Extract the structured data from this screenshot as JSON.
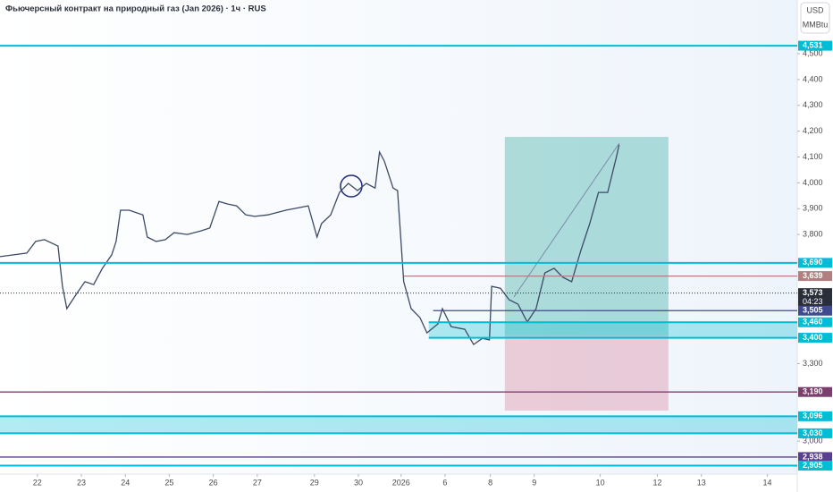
{
  "chart_data": {
    "type": "line",
    "title": "Фьючерсный контракт на природный газ (Jan 2026) · 1ч · RUS",
    "currency": "USD",
    "unit": "MMBtu",
    "xlim": [
      -0.85,
      17.28
    ],
    "ylim": [
      2872,
      4708
    ],
    "xticks": [
      {
        "value": 0,
        "label": "22"
      },
      {
        "value": 1,
        "label": "23"
      },
      {
        "value": 2,
        "label": "24"
      },
      {
        "value": 3,
        "label": "25"
      },
      {
        "value": 4,
        "label": "26"
      },
      {
        "value": 5,
        "label": "27"
      },
      {
        "value": 6.3,
        "label": "29"
      },
      {
        "value": 7.3,
        "label": "30"
      },
      {
        "value": 8.27,
        "label": "2026"
      },
      {
        "value": 9.27,
        "label": "6"
      },
      {
        "value": 10.3,
        "label": "8"
      },
      {
        "value": 11.3,
        "label": "9"
      },
      {
        "value": 12.8,
        "label": "10"
      },
      {
        "value": 14.1,
        "label": "12"
      },
      {
        "value": 15.1,
        "label": "13"
      },
      {
        "value": 16.6,
        "label": "14"
      }
    ],
    "yticks": [
      {
        "value": 3000,
        "label": "3,000"
      },
      {
        "value": 3300,
        "label": "3,300"
      },
      {
        "value": 3800,
        "label": "3,800"
      },
      {
        "value": 3900,
        "label": "3,900"
      },
      {
        "value": 4000,
        "label": "4,000"
      },
      {
        "value": 4100,
        "label": "4,100"
      },
      {
        "value": 4200,
        "label": "4,200"
      },
      {
        "value": 4300,
        "label": "4,300"
      },
      {
        "value": 4400,
        "label": "4,400"
      },
      {
        "value": 4500,
        "label": "4,500"
      }
    ],
    "x": [
      -0.85,
      -0.24,
      -0.04,
      0.16,
      0.47,
      0.57,
      0.67,
      0.87,
      1.08,
      1.28,
      1.48,
      1.69,
      1.79,
      1.89,
      2.09,
      2.4,
      2.5,
      2.7,
      2.91,
      3.11,
      3.41,
      3.72,
      3.92,
      4.13,
      4.33,
      4.53,
      4.74,
      4.94,
      5.24,
      5.65,
      6.16,
      6.36,
      6.46,
      6.67,
      6.87,
      7.07,
      7.28,
      7.48,
      7.68,
      7.78,
      7.89,
      7.99,
      8.09,
      8.19,
      8.33,
      8.5,
      8.7,
      8.86,
      9.11,
      9.21,
      9.41,
      9.72,
      9.92,
      10.12,
      10.28,
      10.33,
      10.53,
      10.73,
      10.93,
      11.14,
      11.34,
      11.54,
      11.75,
      11.95,
      12.15,
      12.36,
      12.56,
      12.76,
      12.97,
      13.17,
      13.23
    ],
    "series": [
      {
        "color": "#3d4a66",
        "values": [
          3714,
          3728,
          3773,
          3780,
          3755,
          3599,
          3513,
          3565,
          3617,
          3606,
          3669,
          3721,
          3773,
          3894,
          3894,
          3876,
          3790,
          3773,
          3780,
          3807,
          3800,
          3814,
          3825,
          3928,
          3918,
          3911,
          3876,
          3870,
          3876,
          3894,
          3911,
          3790,
          3842,
          3876,
          3963,
          3998,
          3970,
          3998,
          3980,
          4119,
          4084,
          4032,
          3980,
          3970,
          3617,
          3513,
          3478,
          3419,
          3454,
          3513,
          3443,
          3433,
          3374,
          3398,
          3392,
          3599,
          3592,
          3547,
          3530,
          3461,
          3513,
          3651,
          3669,
          3634,
          3617,
          3738,
          3842,
          3963,
          3963,
          4102,
          4147
        ]
      }
    ],
    "levels": [
      {
        "value": 4531,
        "label": "4,531",
        "color": "#00bcd4"
      },
      {
        "value": 3690,
        "label": "3,690",
        "color": "#00bcd4"
      },
      {
        "value": 3639,
        "label": "3,639",
        "color": "#b08080",
        "start": 8.33
      },
      {
        "value": 3573,
        "label": "3,573",
        "countdown": "04:23",
        "color": "#2a2e39"
      },
      {
        "value": 3505,
        "label": "3,505",
        "color": "#3f4a8f",
        "start": 9.0
      },
      {
        "value": 3460,
        "label": "3,460",
        "color": "#00bcd4",
        "start": 8.9
      },
      {
        "value": 3400,
        "label": "3,400",
        "color": "#00bcd4",
        "start": 8.9
      },
      {
        "value": 3190,
        "label": "3,190",
        "color": "#7b3f6e"
      },
      {
        "value": 3096,
        "label": "3,096",
        "color": "#00bcd4"
      },
      {
        "value": 3030,
        "label": "3,030",
        "color": "#00bcd4"
      },
      {
        "value": 2938,
        "label": "2,938",
        "color": "#5b3f8f"
      },
      {
        "value": 2905,
        "label": "2,905",
        "color": "#00bcd4"
      }
    ],
    "zones": [
      {
        "from": 3400,
        "to": 3460,
        "start": 8.9
      },
      {
        "from": 3030,
        "to": 3096
      }
    ],
    "position": {
      "start": 10.63,
      "end": 14.35,
      "entry": 3410,
      "target": 4178,
      "stop": 3118
    }
  }
}
